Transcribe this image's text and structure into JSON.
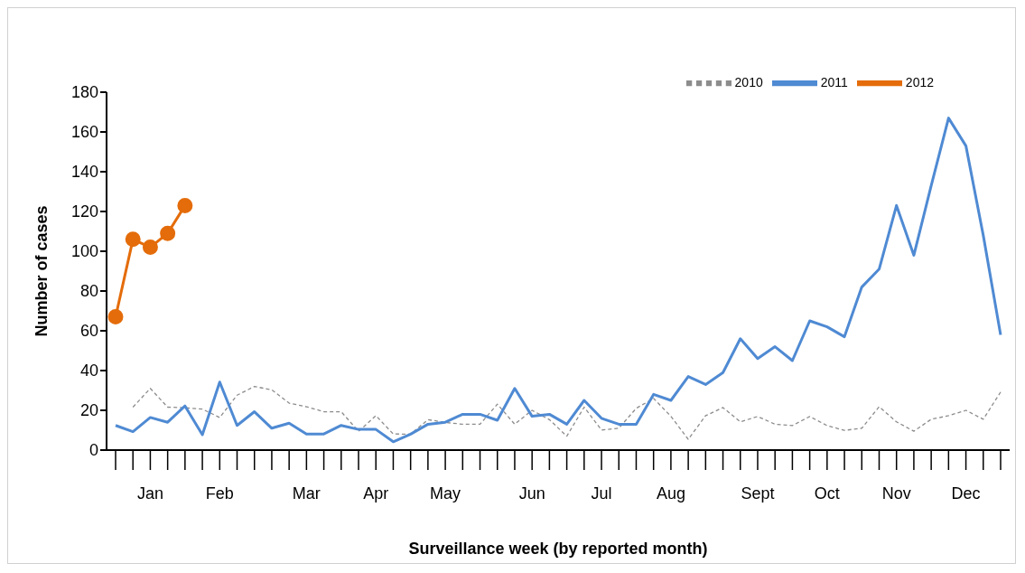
{
  "chart_data": {
    "type": "line",
    "xlabel": "Surveillance week (by reported month)",
    "ylabel": "Number of cases",
    "categories": [
      null,
      null,
      "Jan",
      null,
      null,
      null,
      "Feb",
      null,
      null,
      null,
      null,
      "Mar",
      null,
      null,
      null,
      "Apr",
      null,
      null,
      null,
      "May",
      null,
      null,
      null,
      null,
      "Jun",
      null,
      null,
      null,
      "Jul",
      null,
      null,
      null,
      "Aug",
      null,
      null,
      null,
      null,
      "Sept",
      null,
      null,
      null,
      "Oct",
      null,
      null,
      null,
      "Nov",
      null,
      null,
      null,
      "Dec",
      null,
      null
    ],
    "series": [
      {
        "name": "2010",
        "color": "#8c8c8c",
        "line_style": "dashed",
        "marker": "none",
        "values": [
          null,
          21.6,
          31,
          21.6,
          21.3,
          20.6,
          16.4,
          27.6,
          32,
          30.3,
          23.6,
          21.8,
          19.3,
          19.3,
          9.4,
          17.3,
          8.1,
          8,
          15.3,
          13.9,
          13,
          13,
          23.1,
          13,
          20,
          15.3,
          7,
          21.6,
          10.1,
          11,
          21,
          26,
          17,
          5.4,
          17.3,
          21.4,
          14.2,
          16.9,
          13,
          12.3,
          16.9,
          12.3,
          9.9,
          11,
          21.8,
          14.2,
          9.5,
          15.5,
          17.3,
          20,
          15.5,
          29.2
        ]
      },
      {
        "name": "2011",
        "color": "#4f8ad3",
        "line_style": "solid",
        "marker": "none",
        "values": [
          12.4,
          9.3,
          16.4,
          14,
          22.2,
          7.7,
          34.2,
          12.4,
          19.3,
          11,
          13.5,
          8.1,
          8.1,
          12.4,
          10.4,
          10.4,
          4.2,
          8,
          13,
          14,
          18,
          18,
          15,
          31,
          17,
          18,
          13,
          25,
          16,
          13,
          13,
          28,
          25,
          37,
          33,
          39,
          56,
          46,
          52,
          45,
          65,
          62,
          57,
          82,
          91,
          123,
          98,
          133,
          167,
          153,
          108,
          58
        ]
      },
      {
        "name": "2012",
        "color": "#e46c0a",
        "line_style": "solid",
        "marker": "circle",
        "values": [
          67,
          106,
          102,
          109,
          123,
          null,
          null,
          null,
          null,
          null,
          null,
          null,
          null,
          null,
          null,
          null,
          null,
          null,
          null,
          null,
          null,
          null,
          null,
          null,
          null,
          null,
          null,
          null,
          null,
          null,
          null,
          null,
          null,
          null,
          null,
          null,
          null,
          null,
          null,
          null,
          null,
          null,
          null,
          null,
          null,
          null,
          null,
          null,
          null,
          null,
          null,
          null
        ]
      }
    ],
    "ylim": [
      0,
      180
    ],
    "yticks": [
      0,
      20,
      40,
      60,
      80,
      100,
      120,
      140,
      160,
      180
    ],
    "legend": "top right"
  }
}
